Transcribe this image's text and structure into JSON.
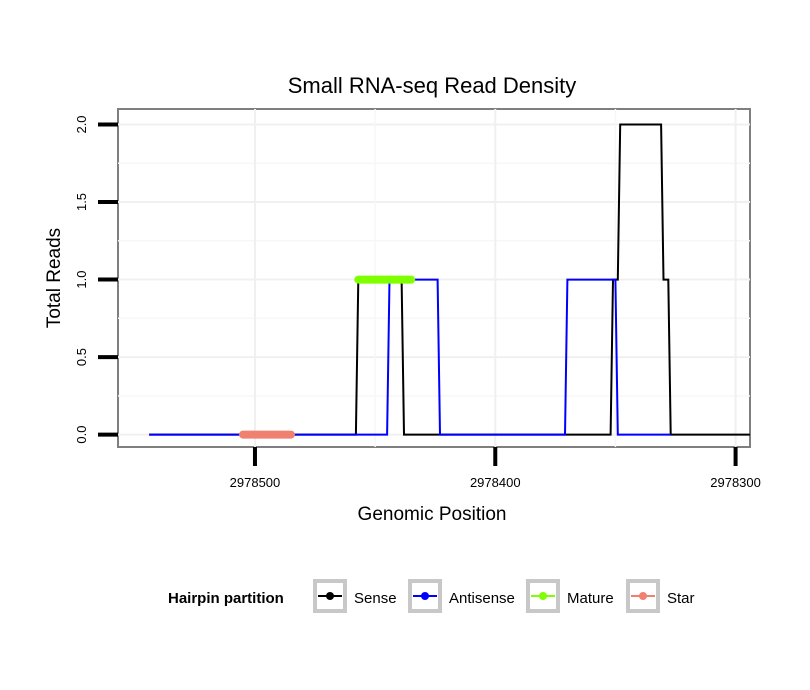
{
  "chart_data": {
    "type": "line",
    "title": "Small RNA-seq Read Density",
    "xlabel": "Genomic Position",
    "ylabel": "Total Reads",
    "xlim": [
      2978557,
      2978294
    ],
    "ylim": [
      -0.08,
      2.1
    ],
    "x_reversed": true,
    "grid": true,
    "x_ticks": [
      2978500,
      2978400,
      2978300
    ],
    "x_tick_labels": [
      "2978500",
      "2978400",
      "2978300"
    ],
    "y_ticks": [
      0.0,
      0.5,
      1.0,
      1.5,
      2.0
    ],
    "y_tick_labels": [
      "0.0",
      "0.5",
      "1.0",
      "1.5",
      "2.0"
    ],
    "legend": {
      "title": "Hairpin partition",
      "placement": "bottom",
      "entries": [
        {
          "name": "Sense",
          "color": "#000000"
        },
        {
          "name": "Antisense",
          "color": "#0000ff"
        },
        {
          "name": "Mature",
          "color": "#7fff00"
        },
        {
          "name": "Star",
          "color": "#f08070"
        }
      ]
    },
    "series": [
      {
        "name": "Sense",
        "color": "#000000",
        "x": [
          2978544,
          2978458,
          2978457,
          2978439,
          2978438,
          2978352,
          2978351,
          2978349,
          2978348,
          2978331,
          2978330,
          2978328,
          2978327,
          2978294
        ],
        "y": [
          0,
          0,
          1,
          1,
          0,
          0,
          1,
          1,
          2,
          2,
          1,
          1,
          0,
          0
        ]
      },
      {
        "name": "Antisense",
        "color": "#0000ff",
        "x": [
          2978544,
          2978445,
          2978444,
          2978424,
          2978423,
          2978371,
          2978370,
          2978350,
          2978349,
          2978327
        ],
        "y": [
          0,
          0,
          1,
          1,
          0,
          0,
          1,
          1,
          0,
          0
        ]
      },
      {
        "name": "Mature",
        "color": "#7fff00",
        "x": [
          2978457,
          2978435
        ],
        "y": [
          1,
          1
        ]
      },
      {
        "name": "Star",
        "color": "#f08070",
        "x": [
          2978505,
          2978485
        ],
        "y": [
          0,
          0
        ]
      }
    ]
  }
}
